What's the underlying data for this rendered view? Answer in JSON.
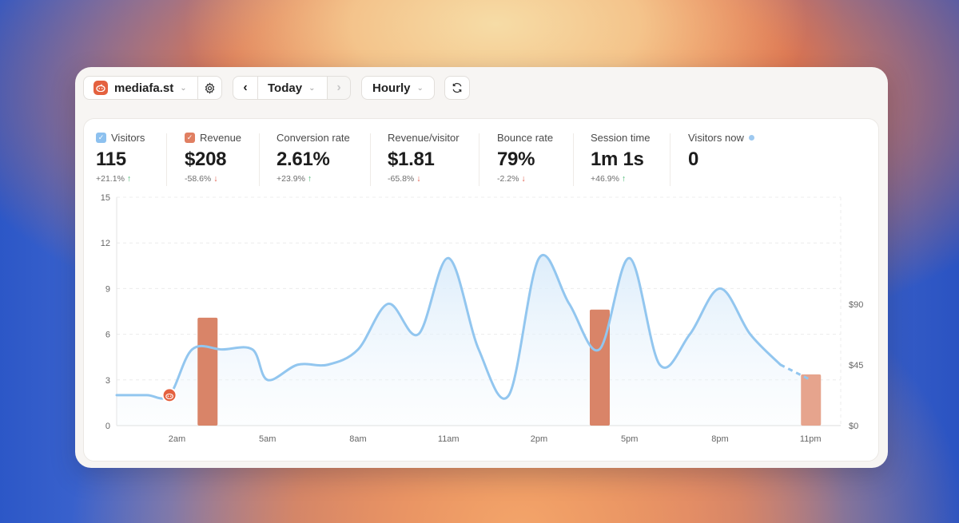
{
  "toolbar": {
    "site_name": "mediafa.st",
    "date_range": "Today",
    "granularity": "Hourly"
  },
  "metrics": [
    {
      "label": "Visitors",
      "value": "115",
      "delta": "+21.1%",
      "trend": "up",
      "checkbox": true,
      "checked": true,
      "check_color": "#8dc1ef"
    },
    {
      "label": "Revenue",
      "value": "$208",
      "delta": "-58.6%",
      "trend": "down",
      "checkbox": true,
      "checked": true,
      "check_color": "#e07f62"
    },
    {
      "label": "Conversion rate",
      "value": "2.61%",
      "delta": "+23.9%",
      "trend": "up"
    },
    {
      "label": "Revenue/visitor",
      "value": "$1.81",
      "delta": "-65.8%",
      "trend": "down"
    },
    {
      "label": "Bounce rate",
      "value": "79%",
      "delta": "-2.2%",
      "trend": "down"
    },
    {
      "label": "Session time",
      "value": "1m 1s",
      "delta": "+46.9%",
      "trend": "up"
    },
    {
      "label": "Visitors now",
      "value": "0",
      "live_dot": true
    }
  ],
  "chart_data": {
    "type": "line",
    "x_ticks": [
      "2am",
      "5am",
      "8am",
      "11am",
      "2pm",
      "5pm",
      "8pm",
      "11pm"
    ],
    "x_tick_hours": [
      2,
      5,
      8,
      11,
      14,
      17,
      20,
      23
    ],
    "y_left_ticks": [
      0,
      3,
      6,
      9,
      12,
      15
    ],
    "y_left_range": [
      0,
      15
    ],
    "y_right_ticks": [
      "$0",
      "$45",
      "$90"
    ],
    "y_right_values": [
      0,
      45,
      90
    ],
    "series": [
      {
        "axis": "left",
        "color": "#92c6ef",
        "hours": [
          0,
          1,
          1.75,
          2.5,
          3.5,
          4.5,
          5,
          6,
          7,
          8,
          9,
          10,
          11,
          12,
          13,
          14,
          15,
          16,
          17,
          18,
          19,
          20,
          21,
          22,
          23
        ],
        "values": [
          2,
          2,
          2,
          5,
          5,
          5,
          3,
          4,
          4,
          5,
          8,
          6,
          11,
          5,
          2,
          11,
          8,
          5,
          11,
          4,
          6,
          9,
          6,
          4,
          3
        ],
        "dashed_from_hour": 22
      },
      {
        "axis": "right",
        "hours": [
          3,
          16,
          23
        ],
        "values": [
          80,
          86,
          38
        ],
        "colors": [
          "#d98468",
          "#d98468",
          "#e6a48d"
        ]
      }
    ]
  }
}
